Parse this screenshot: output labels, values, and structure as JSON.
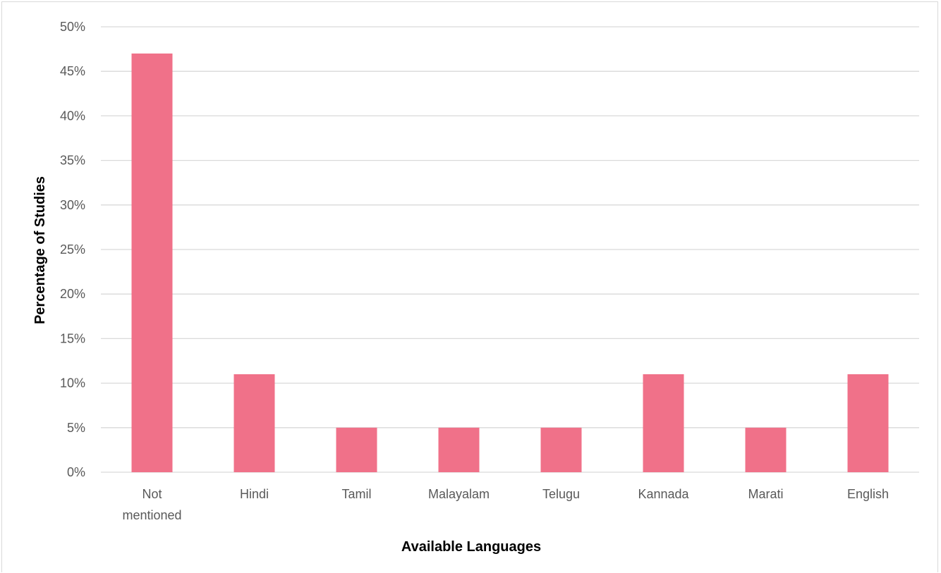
{
  "chart_data": {
    "type": "bar",
    "title": "",
    "xlabel": "Available Languages",
    "ylabel": "Percentage of Studies",
    "categories": [
      "Not mentioned",
      "Hindi",
      "Tamil",
      "Malayalam",
      "Telugu",
      "Kannada",
      "Marati",
      "English"
    ],
    "category_lines": [
      [
        "Not",
        "mentioned"
      ],
      [
        "Hindi"
      ],
      [
        "Tamil"
      ],
      [
        "Malayalam"
      ],
      [
        "Telugu"
      ],
      [
        "Kannada"
      ],
      [
        "Marati"
      ],
      [
        "English"
      ]
    ],
    "values": [
      47,
      11,
      5,
      5,
      5,
      11,
      5,
      11
    ],
    "ylim": [
      0,
      50
    ],
    "yticks": [
      0,
      5,
      10,
      15,
      20,
      25,
      30,
      35,
      40,
      45,
      50
    ],
    "ytick_labels": [
      "0%",
      "5%",
      "10%",
      "15%",
      "20%",
      "25%",
      "30%",
      "35%",
      "40%",
      "45%",
      "50%"
    ],
    "grid": true,
    "legend": "none",
    "bar_color": "#f07189",
    "grid_color": "#d9d9d9"
  }
}
